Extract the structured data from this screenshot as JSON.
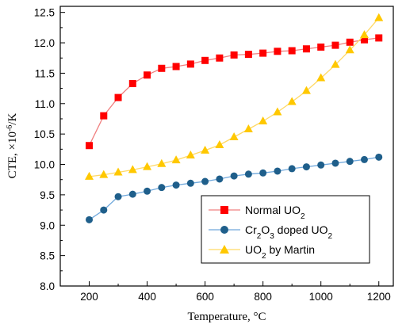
{
  "chart_data": {
    "type": "line",
    "xlabel": "Temperature, °C",
    "ylabel_prefix": "CTE, ×10",
    "ylabel_exp": "-6",
    "ylabel_suffix": "/K",
    "xlim": [
      100,
      1250
    ],
    "ylim": [
      8.0,
      12.6
    ],
    "xticks": [
      200,
      400,
      600,
      800,
      1000,
      1200
    ],
    "yticks": [
      8.0,
      8.5,
      9.0,
      9.5,
      10.0,
      10.5,
      11.0,
      11.5,
      12.0,
      12.5
    ],
    "grid": false,
    "legend_placement": "bottom-right",
    "series": [
      {
        "name_main": "Normal UO",
        "name_sub": "2",
        "name_rest": "",
        "color": "#ff0000",
        "line_color": "#f08080",
        "marker": "square",
        "x": [
          200,
          250,
          300,
          350,
          400,
          450,
          500,
          550,
          600,
          650,
          700,
          750,
          800,
          850,
          900,
          950,
          1000,
          1050,
          1100,
          1150,
          1200
        ],
        "y": [
          10.31,
          10.8,
          11.1,
          11.33,
          11.47,
          11.58,
          11.61,
          11.65,
          11.71,
          11.75,
          11.8,
          11.81,
          11.83,
          11.86,
          11.87,
          11.9,
          11.93,
          11.96,
          12.01,
          12.05,
          12.08
        ]
      },
      {
        "name_main": "Cr",
        "name_sub": "2",
        "name_mid": "O",
        "name_sub2": "3",
        "name_rest": " doped UO",
        "name_sub3": "2",
        "color": "#1f5f8b",
        "line_color": "#6fa8dc",
        "marker": "circle",
        "x": [
          200,
          250,
          300,
          350,
          400,
          450,
          500,
          550,
          600,
          650,
          700,
          750,
          800,
          850,
          900,
          950,
          1000,
          1050,
          1100,
          1150,
          1200
        ],
        "y": [
          9.09,
          9.25,
          9.47,
          9.51,
          9.56,
          9.62,
          9.66,
          9.69,
          9.72,
          9.76,
          9.81,
          9.84,
          9.86,
          9.89,
          9.93,
          9.96,
          9.99,
          10.02,
          10.05,
          10.08,
          10.12
        ]
      },
      {
        "name_main": "UO",
        "name_sub": "2",
        "name_rest": " by Martin",
        "color": "#ffc800",
        "line_color": "#ffd966",
        "marker": "triangle",
        "x": [
          200,
          250,
          300,
          350,
          400,
          450,
          500,
          550,
          600,
          650,
          700,
          750,
          800,
          850,
          900,
          950,
          1000,
          1050,
          1100,
          1150,
          1200
        ],
        "y": [
          9.8,
          9.83,
          9.87,
          9.91,
          9.96,
          10.01,
          10.07,
          10.15,
          10.23,
          10.32,
          10.45,
          10.58,
          10.71,
          10.86,
          11.03,
          11.21,
          11.42,
          11.64,
          11.88,
          12.13,
          12.41
        ]
      }
    ]
  }
}
